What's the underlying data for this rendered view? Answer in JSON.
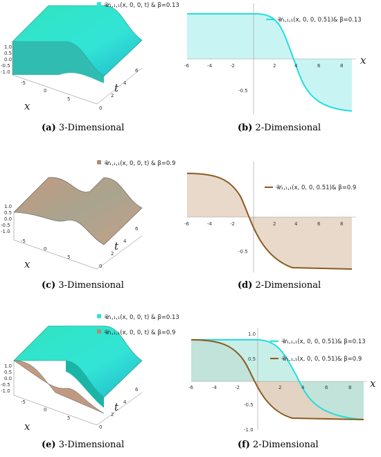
{
  "figure": {
    "panels": [
      {
        "id": "a",
        "label": "(a)",
        "caption": "3-Dimensional"
      },
      {
        "id": "b",
        "label": "(b)",
        "caption": "2-Dimensional"
      },
      {
        "id": "c",
        "label": "(c)",
        "caption": "3-Dimensional"
      },
      {
        "id": "d",
        "label": "(d)",
        "caption": "2-Dimensional"
      },
      {
        "id": "e",
        "label": "(e)",
        "caption": "3-Dimensional"
      },
      {
        "id": "f",
        "label": "(f)",
        "caption": "2-Dimensional"
      }
    ]
  },
  "legends": {
    "a": [
      "𝒰₁,₁,₁(x, 0, 0, t) & β=0.13"
    ],
    "b": [
      "𝒰₁,₁,₁(x, 0, 0, 0.51)& β=0.13"
    ],
    "c": [
      "𝒰₁,₁,₁(x, 0, 0, t) & β=0.9"
    ],
    "d": [
      "𝒰₁,₁,₁(x, 0, 0, 0.51)& β=0.9"
    ],
    "e": [
      "𝒰₁,₁,₁(x, 0, 0, t) & β=0.13",
      "𝒰₁,₁,₁(x, 0, 0, t) & β=0.9"
    ],
    "f": [
      "𝒰₁,₁,₁(x, 0, 0, 0.51)& β=0.13",
      "𝒰₁,₁,₁(x, 0, 0, 0.51)& β=0.9"
    ]
  },
  "axis3d": {
    "z_ticks": [
      "1.0",
      "0.5",
      "0.0",
      "-0.5",
      "-1.0"
    ],
    "x_ticks": [
      "-5",
      "0",
      "5"
    ],
    "t_ticks": [
      "0",
      "2",
      "4",
      "6"
    ],
    "x_label": "x",
    "t_label": "t"
  },
  "axis2d": {
    "x_ticks": [
      "-6",
      "-4",
      "-2",
      "2",
      "4",
      "6",
      "8"
    ],
    "y_ticks_b": [
      "-0.5"
    ],
    "y_ticks_d": [
      "-0.5"
    ],
    "y_ticks_f": [
      "1.0",
      "0.5",
      "-0.5",
      "-1.0"
    ],
    "x_label": "x"
  },
  "colors": {
    "cyan_line": "#22dede",
    "cyan_fill": "#c9f4f4",
    "brown_line": "#8b5a1e",
    "brown_fill": "#e8d9cb",
    "surface_cyan": "#32e0c4",
    "surface_brown": "#c09a80"
  },
  "chart_data": [
    {
      "type": "area",
      "panel": "b",
      "series": [
        {
          "name": "𝒰₁,₁,₁(x, 0, 0, 0.51)& β=0.13",
          "x": [
            -6,
            -4,
            -2,
            0,
            2,
            3,
            4,
            5,
            6,
            8,
            9
          ],
          "values": [
            0.85,
            0.85,
            0.85,
            0.84,
            0.65,
            0.35,
            -0.05,
            -0.45,
            -0.7,
            -0.85,
            -0.86
          ]
        }
      ],
      "xlim": [
        -6,
        9
      ],
      "xlabel": "x"
    },
    {
      "type": "area",
      "panel": "d",
      "series": [
        {
          "name": "𝒰₁,₁,₁(x, 0, 0, 0.51)& β=0.9",
          "x": [
            -6,
            -4,
            -2,
            -1,
            0,
            1,
            2,
            4,
            6,
            8,
            9
          ],
          "values": [
            0.85,
            0.82,
            0.6,
            0.3,
            -0.1,
            -0.5,
            -0.75,
            -0.86,
            -0.87,
            -0.87,
            -0.87
          ]
        }
      ],
      "xlim": [
        -6,
        9
      ],
      "xlabel": "x"
    },
    {
      "type": "area",
      "panel": "f",
      "series": [
        {
          "name": "𝒰₁,₁,₁(x, 0, 0, 0.51)& β=0.13",
          "x": [
            -6,
            -4,
            -2,
            0,
            2,
            3,
            4,
            5,
            6,
            8,
            9
          ],
          "values": [
            0.85,
            0.85,
            0.85,
            0.84,
            0.65,
            0.35,
            -0.05,
            -0.45,
            -0.7,
            -0.85,
            -0.86
          ]
        },
        {
          "name": "𝒰₁,₁,₁(x, 0, 0, 0.51)& β=0.9",
          "x": [
            -6,
            -4,
            -2,
            -1,
            0,
            1,
            2,
            4,
            6,
            8,
            9
          ],
          "values": [
            0.85,
            0.82,
            0.6,
            0.3,
            -0.1,
            -0.5,
            -0.75,
            -0.86,
            -0.87,
            -0.87,
            -0.87
          ]
        }
      ],
      "xlim": [
        -6,
        9
      ],
      "ylim": [
        -1.0,
        1.0
      ],
      "xlabel": "x"
    }
  ]
}
